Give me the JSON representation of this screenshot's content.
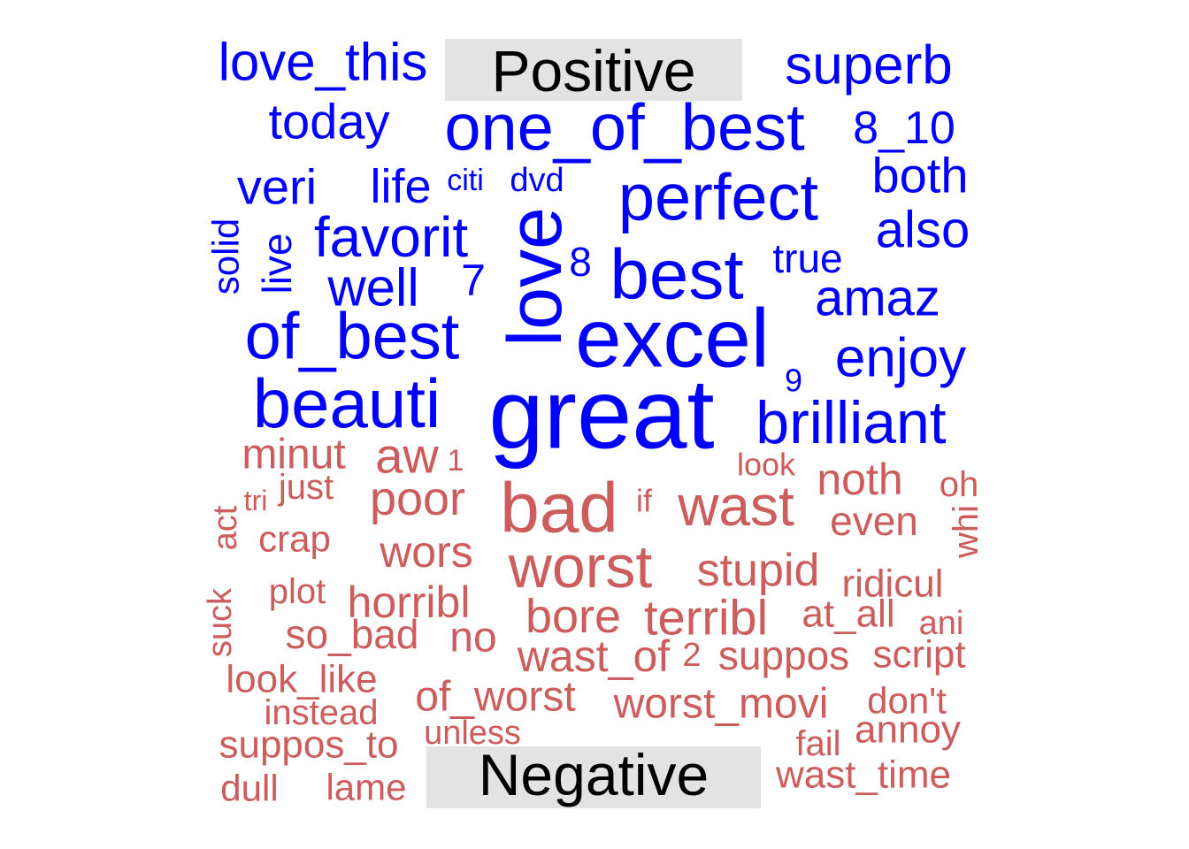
{
  "chart_data": {
    "type": "wordcloud",
    "title": "",
    "groups": [
      {
        "label": "Positive",
        "color": "#0000FF",
        "words": [
          "great",
          "excel",
          "love",
          "best",
          "perfect",
          "one_of_best",
          "of_best",
          "beauti",
          "brilliant",
          "favorit",
          "superb",
          "love_this",
          "today",
          "8_10",
          "both",
          "also",
          "amaz",
          "enjoy",
          "well",
          "veri",
          "life",
          "citi",
          "dvd",
          "solid",
          "live",
          "7",
          "8",
          "true",
          "9"
        ]
      },
      {
        "label": "Negative",
        "color": "#CD5C5C",
        "words": [
          "bad",
          "worst",
          "wast",
          "aw",
          "poor",
          "noth",
          "minut",
          "just",
          "1",
          "look",
          "oh",
          "tri",
          "act",
          "crap",
          "if",
          "even",
          "whi",
          "wors",
          "stupid",
          "ridicul",
          "plot",
          "horribl",
          "bore",
          "terribl",
          "at_all",
          "suck",
          "so_bad",
          "no",
          "ani",
          "wast_of",
          "2",
          "suppos",
          "script",
          "look_like",
          "of_worst",
          "worst_movi",
          "don't",
          "instead",
          "unless",
          "annoy",
          "suppos_to",
          "fail",
          "dull",
          "lame",
          "wast_time"
        ]
      }
    ]
  }
}
